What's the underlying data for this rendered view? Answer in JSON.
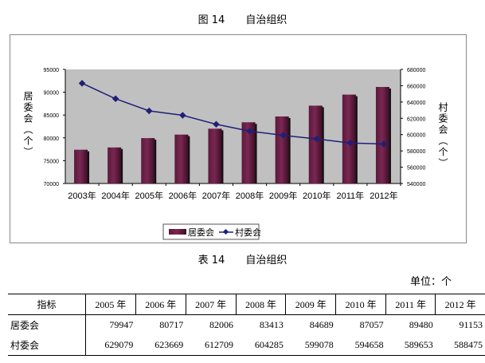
{
  "figure_title": "图 14　　自治组织",
  "chart_data": {
    "type": "bar+line",
    "categories": [
      "2003年",
      "2004年",
      "2005年",
      "2006年",
      "2007年",
      "2008年",
      "2009年",
      "2010年",
      "2011年",
      "2012年"
    ],
    "series": [
      {
        "name": "居委会",
        "type": "bar",
        "axis": "left",
        "color": "#7b2752",
        "values": [
          77400,
          77900,
          79947,
          80717,
          82006,
          83413,
          84689,
          87057,
          89480,
          91153
        ]
      },
      {
        "name": "村委会",
        "type": "line",
        "axis": "right",
        "color": "#1f1f7a",
        "values": [
          663000,
          644000,
          629079,
          623669,
          612709,
          604285,
          599078,
          594658,
          589653,
          588475
        ]
      }
    ],
    "ylabel": "居委会（个）",
    "y2label": "村委会（个）",
    "ylim": [
      70000,
      95000
    ],
    "yticks": [
      "70000",
      "75000",
      "80000",
      "85000",
      "90000",
      "95000"
    ],
    "y2lim": [
      540000,
      680000
    ],
    "y2ticks": [
      "540000",
      "560000",
      "580000",
      "600000",
      "620000",
      "640000",
      "660000",
      "680000"
    ],
    "plot_bg": "#c0c0c0",
    "grid": false,
    "legend": "bottom"
  },
  "table_title": "表 14　　自治组织",
  "unit": "单位：个",
  "table": {
    "headers": [
      "指标",
      "2005 年",
      "2006 年",
      "2007 年",
      "2008 年",
      "2009 年",
      "2010 年",
      "2011 年",
      "2012 年"
    ],
    "rows": [
      [
        "居委会",
        "79947",
        "80717",
        "82006",
        "83413",
        "84689",
        "87057",
        "89480",
        "91153"
      ],
      [
        "村委会",
        "629079",
        "623669",
        "612709",
        "604285",
        "599078",
        "594658",
        "589653",
        "588475"
      ]
    ]
  }
}
